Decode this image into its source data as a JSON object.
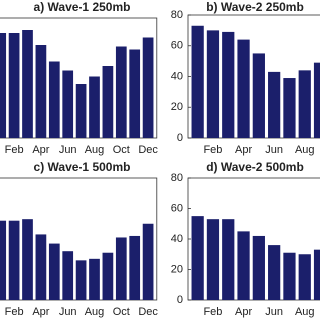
{
  "chart_data": [
    {
      "type": "bar",
      "title": "a) Wave-1 250mb",
      "color": "#1b1f6b",
      "categories": [
        null,
        "Feb",
        null,
        "Apr",
        null,
        "Jun",
        null,
        "Aug",
        null,
        "Oct",
        null,
        "Dec"
      ],
      "values": [
        70,
        70,
        72,
        62,
        51,
        45,
        36,
        41,
        48,
        61,
        59,
        67
      ],
      "ylim": [
        0,
        80
      ]
    },
    {
      "type": "bar",
      "title": "b) Wave-2 250mb",
      "color": "#1b1f6b",
      "categories": [
        null,
        "Feb",
        null,
        "Apr",
        null,
        "Jun",
        null,
        "Aug",
        null
      ],
      "values": [
        73,
        70,
        69,
        64,
        55,
        43,
        39,
        44,
        49
      ],
      "ylim": [
        0,
        80
      ],
      "yticks": [
        0,
        20,
        40,
        60,
        80
      ]
    },
    {
      "type": "bar",
      "title": "c) Wave-1 500mb",
      "color": "#1b1f6b",
      "categories": [
        null,
        "Feb",
        null,
        "Apr",
        null,
        "Jun",
        null,
        "Aug",
        null,
        "Oct",
        null,
        "Dec"
      ],
      "values": [
        52,
        52,
        53,
        43,
        37,
        32,
        26,
        27,
        31,
        41,
        42,
        50
      ],
      "ylim": [
        0,
        80
      ]
    },
    {
      "type": "bar",
      "title": "d) Wave-2 500mb",
      "color": "#1b1f6b",
      "categories": [
        null,
        "Feb",
        null,
        "Apr",
        null,
        "Jun",
        null,
        "Aug",
        null
      ],
      "values": [
        55,
        53,
        53,
        45,
        42,
        36,
        31,
        30,
        33
      ],
      "ylim": [
        0,
        80
      ],
      "yticks": [
        0,
        20,
        40,
        60,
        80
      ]
    }
  ]
}
